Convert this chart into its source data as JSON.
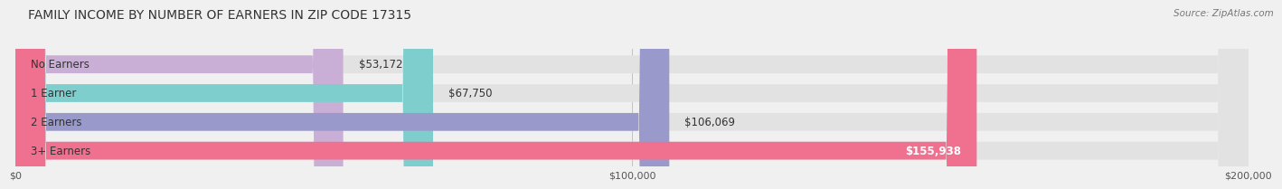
{
  "title": "FAMILY INCOME BY NUMBER OF EARNERS IN ZIP CODE 17315",
  "source": "Source: ZipAtlas.com",
  "categories": [
    "No Earners",
    "1 Earner",
    "2 Earners",
    "3+ Earners"
  ],
  "values": [
    53172,
    67750,
    106069,
    155938
  ],
  "bar_colors": [
    "#c9aed6",
    "#7ecece",
    "#9999cc",
    "#f07090"
  ],
  "label_colors": [
    "#333333",
    "#333333",
    "#333333",
    "#ffffff"
  ],
  "value_labels": [
    "$53,172",
    "$67,750",
    "$106,069",
    "$155,938"
  ],
  "xlim": [
    0,
    200000
  ],
  "xticks": [
    0,
    100000,
    200000
  ],
  "xtick_labels": [
    "$0",
    "$100,000",
    "$200,000"
  ],
  "background_color": "#f0f0f0",
  "bar_background_color": "#e2e2e2",
  "title_fontsize": 10,
  "source_fontsize": 7.5,
  "label_fontsize": 8.5,
  "value_fontsize": 8.5
}
